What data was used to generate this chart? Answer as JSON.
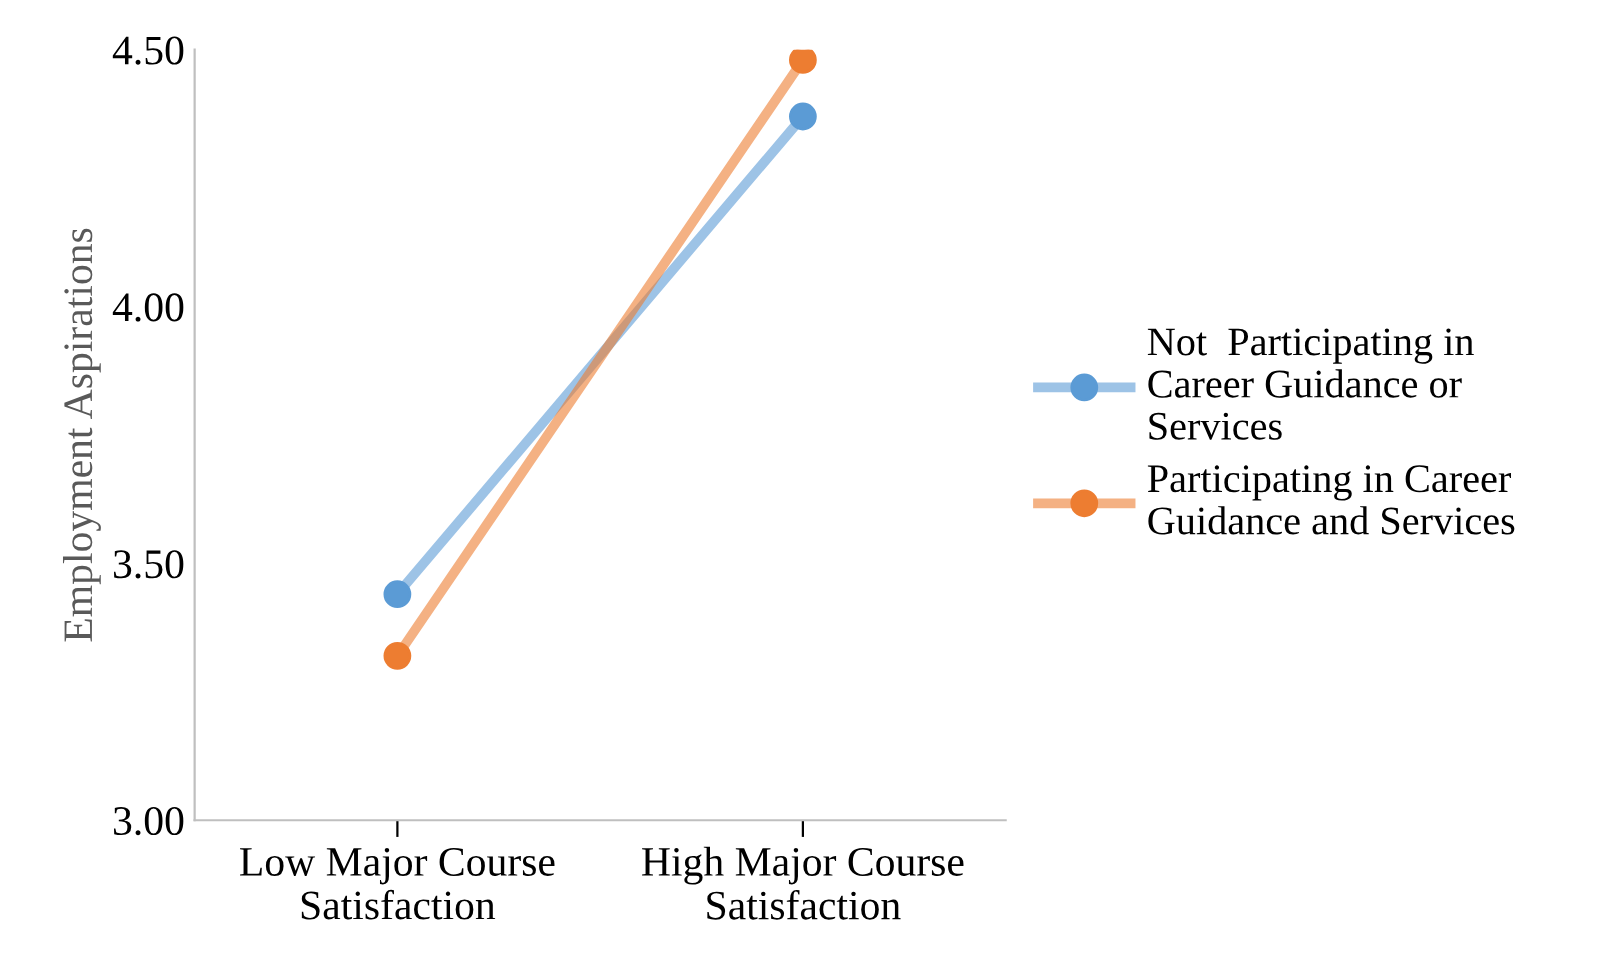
{
  "chart_data": {
    "type": "line",
    "ylabel": "Employment Aspirations",
    "categories": [
      "Low Major Course\nSatisfaction",
      "High Major Course\nSatisfaction"
    ],
    "series": [
      {
        "name": "Not  Participating in\nCareer Guidance or\nServices",
        "color": "#5b9bd5",
        "values": [
          3.44,
          4.37
        ]
      },
      {
        "name": "Participating in Career\nGuidance and Services",
        "color": "#ed7d31",
        "values": [
          3.32,
          4.48
        ]
      }
    ],
    "ylim": [
      3.0,
      4.5
    ],
    "yticks": [
      {
        "value": 3.0,
        "label": "3.00"
      },
      {
        "value": 3.5,
        "label": "3.50"
      },
      {
        "value": 4.0,
        "label": "4.00"
      },
      {
        "value": 4.5,
        "label": "4.50"
      }
    ],
    "grid": false,
    "legend": "right",
    "marker": "circle",
    "line_style": "solid"
  }
}
